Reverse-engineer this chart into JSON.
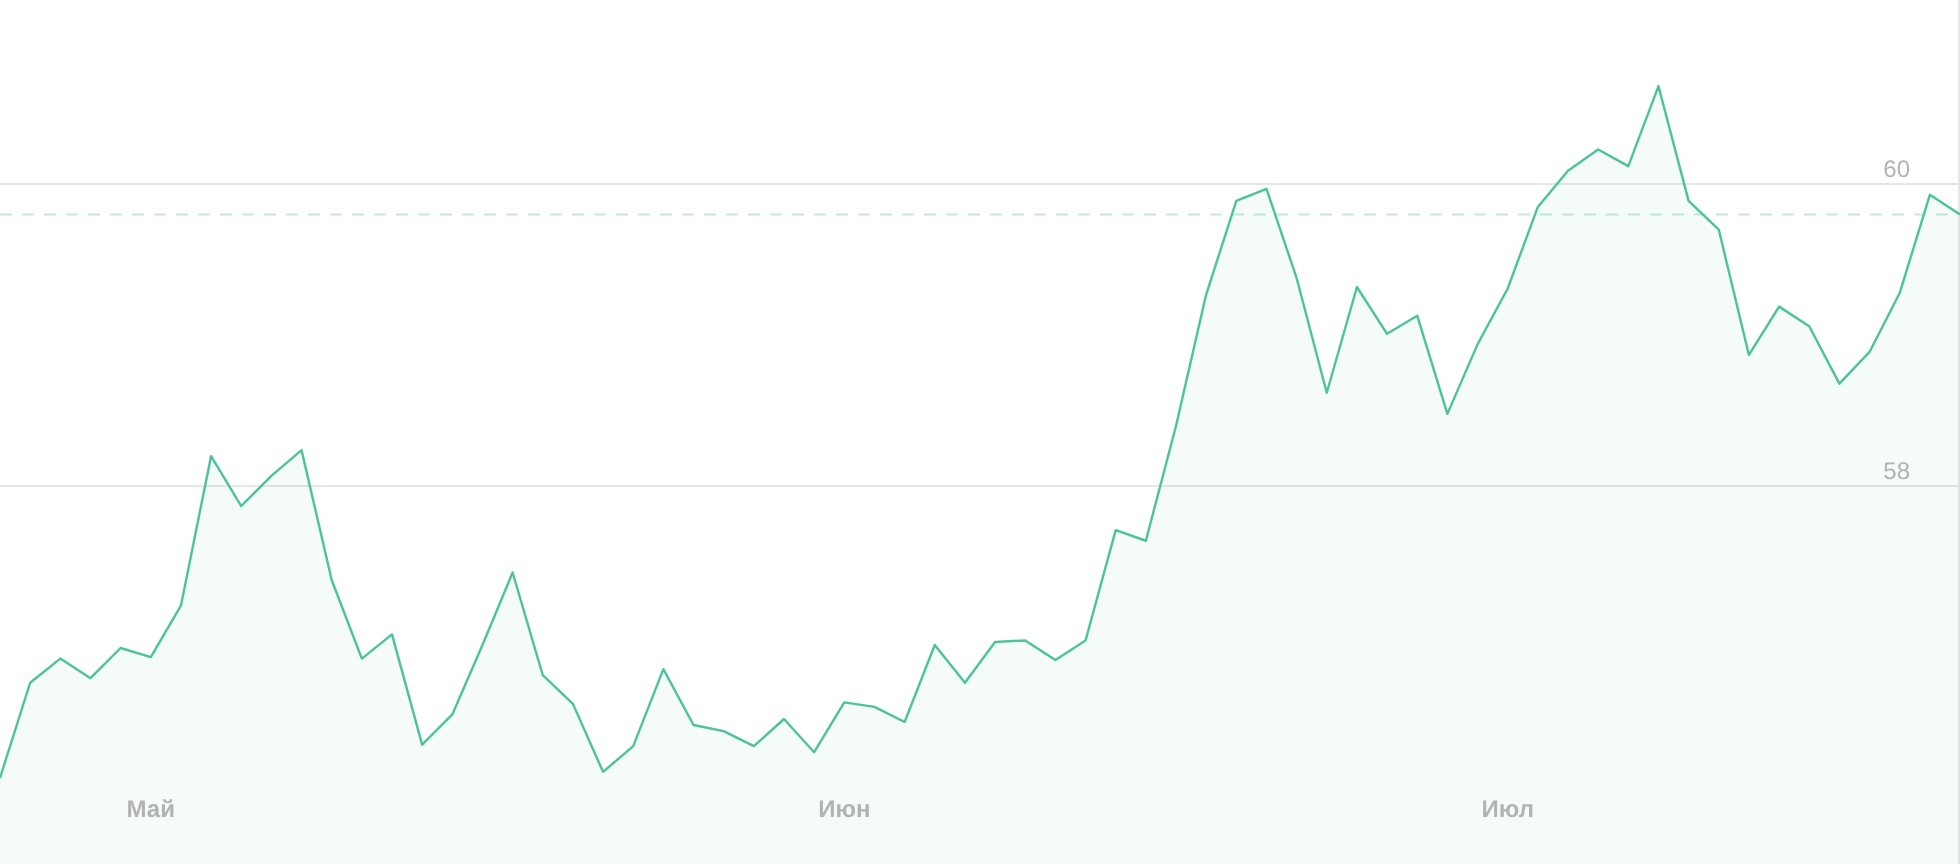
{
  "chart_data": {
    "type": "area",
    "categories": [
      null,
      null,
      null,
      null,
      null,
      "Май",
      null,
      null,
      null,
      null,
      null,
      null,
      null,
      null,
      null,
      null,
      null,
      null,
      null,
      null,
      null,
      null,
      null,
      null,
      null,
      null,
      null,
      null,
      "Июн",
      null,
      null,
      null,
      null,
      null,
      null,
      null,
      null,
      null,
      null,
      null,
      null,
      null,
      null,
      null,
      null,
      null,
      null,
      null,
      null,
      null,
      "Июл",
      null,
      null,
      null,
      null,
      null,
      null,
      null,
      null,
      null,
      null,
      null,
      null,
      null,
      null,
      null
    ],
    "values": [
      56.07,
      56.7,
      56.86,
      56.73,
      56.93,
      56.87,
      57.21,
      58.2,
      57.87,
      58.07,
      58.24,
      57.38,
      56.86,
      57.02,
      56.29,
      56.49,
      56.95,
      57.43,
      56.75,
      56.56,
      56.11,
      56.28,
      56.79,
      56.42,
      56.38,
      56.28,
      56.46,
      56.24,
      56.57,
      56.54,
      56.44,
      56.95,
      56.7,
      56.97,
      56.98,
      56.85,
      56.98,
      57.71,
      57.64,
      58.4,
      59.27,
      59.89,
      59.97,
      59.38,
      58.62,
      59.32,
      59.01,
      59.13,
      58.48,
      58.94,
      59.31,
      59.85,
      60.09,
      60.23,
      60.12,
      60.65,
      59.89,
      59.7,
      58.87,
      59.19,
      59.06,
      58.68,
      58.89,
      59.28,
      59.93,
      59.8
    ],
    "color": "#4cc39a",
    "ylim": [
      55.5,
      61.22
    ],
    "yticks": [
      58,
      60
    ],
    "grid": "y",
    "legend": false,
    "marker": "none",
    "ref_lines": [
      {
        "axis": "y",
        "value": 59.8,
        "color": "#c4ebdc",
        "line_style": "dashed"
      }
    ]
  }
}
